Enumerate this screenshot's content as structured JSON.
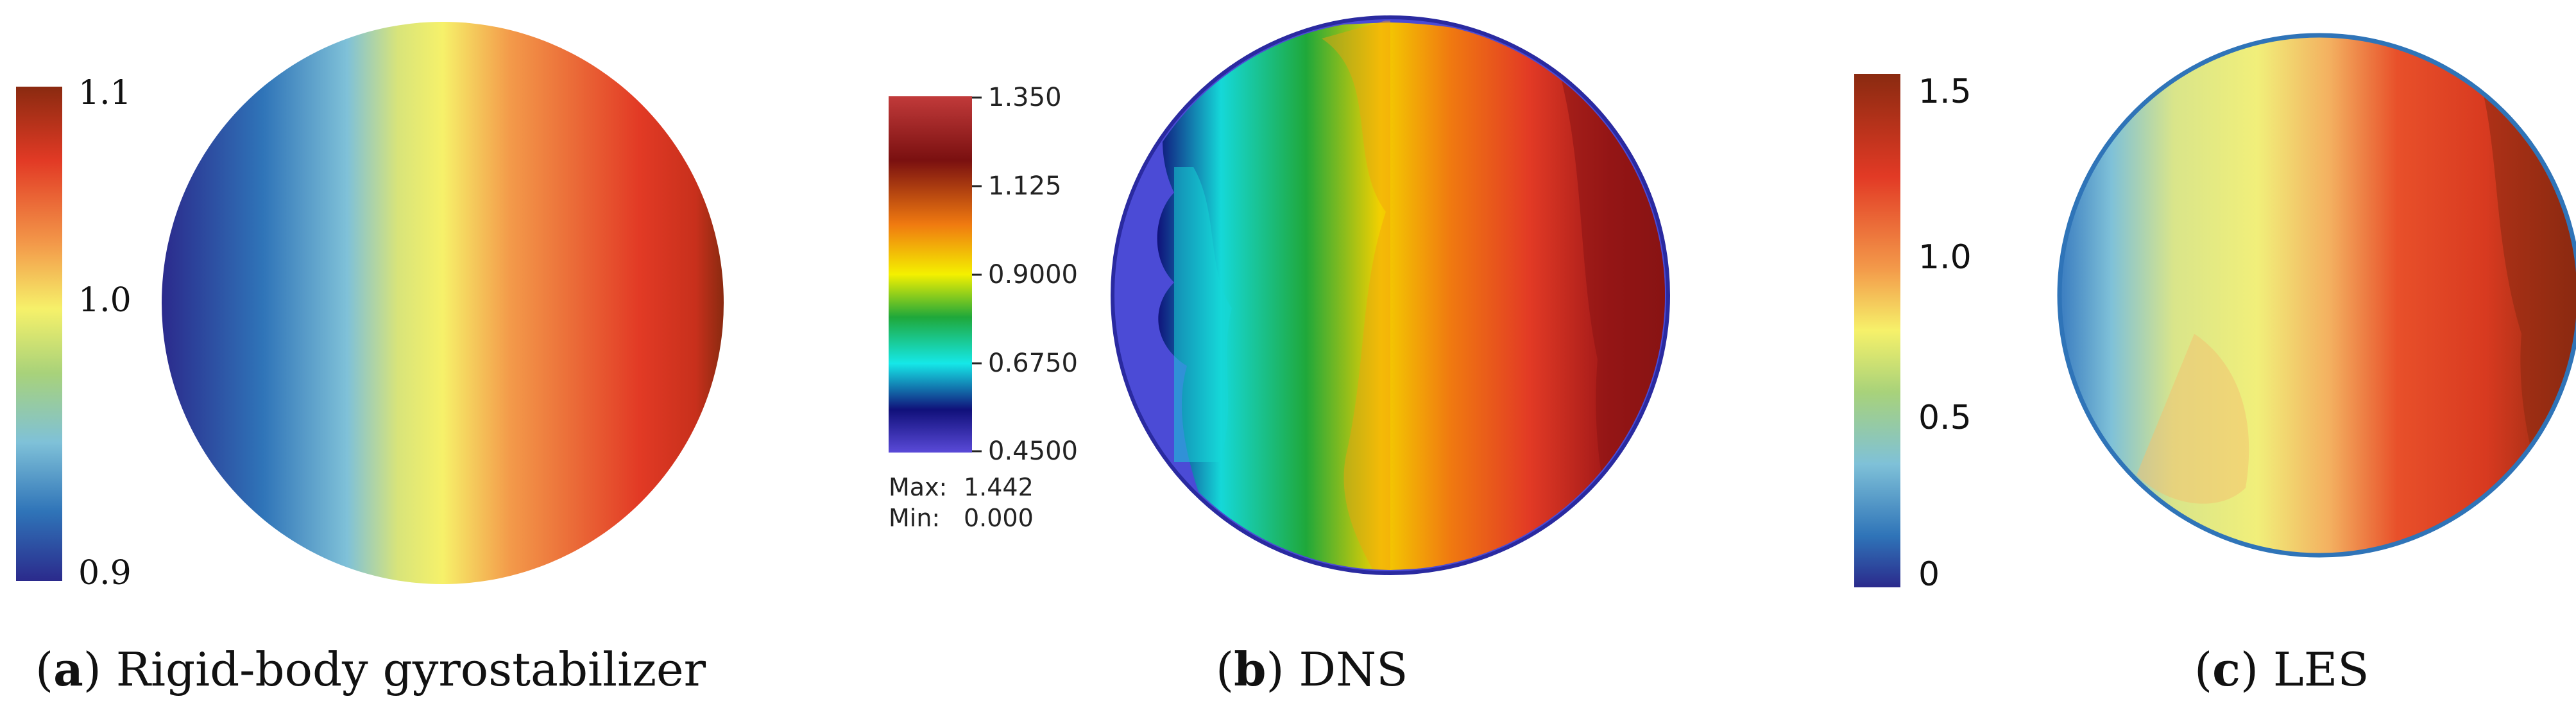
{
  "panels": [
    {
      "id": "a",
      "caption_letter": "a",
      "caption_text": "Rigid-body gyrostabilizer",
      "colorbar_ticks": [
        "1.1",
        "1.0",
        "0.9"
      ]
    },
    {
      "id": "b",
      "caption_letter": "b",
      "caption_text": "DNS",
      "colorbar_ticks": [
        "1.350",
        "1.125",
        "0.9000",
        "0.6750",
        "0.4500"
      ],
      "max_label": "Max:",
      "max_value": "1.442",
      "min_label": "Min:",
      "min_value": "0.000"
    },
    {
      "id": "c",
      "caption_letter": "c",
      "caption_text": "LES",
      "colorbar_ticks": [
        "1.5",
        "1.0",
        "0.5",
        "0"
      ]
    }
  ],
  "colors": {
    "deep_blue": "#2b2a8c",
    "blue": "#2f74b8",
    "light_blue": "#7fc1d8",
    "yellow": "#f6f16a",
    "orange": "#f39a4a",
    "red": "#e23a25",
    "dark_red": "#8a2a10",
    "dns_back": "#4b4bd6"
  }
}
